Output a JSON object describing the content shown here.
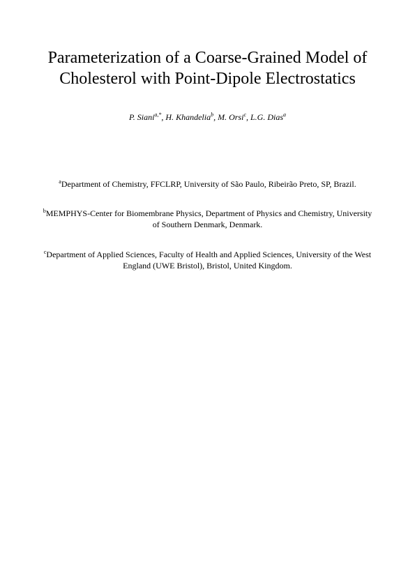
{
  "title": "Parameterization of a Coarse-Grained Model of  Cholesterol with Point-Dipole Electrostatics",
  "authors": {
    "a1_name": "P. Siani",
    "a1_sup": "a,*",
    "a2_name": "H. Khandelia",
    "a2_sup": "b",
    "a3_name": "M. Orsi",
    "a3_sup": "c",
    "a4_name": "L.G. Dias",
    "a4_sup": "a",
    "sep": ", "
  },
  "affiliations": {
    "aff1_sup": "a",
    "aff1_text": "Department of Chemistry, FFCLRP, University of São Paulo, Ribeirão Preto, SP, Brazil.",
    "aff2_sup": "b",
    "aff2_text": "MEMPHYS-Center for Biomembrane Physics, Department of Physics and Chemistry, University of Southern Denmark, Denmark.",
    "aff3_sup": "c",
    "aff3_text": "Department of Applied Sciences, Faculty of Health and Applied Sciences, University of the West England (UWE Bristol), Bristol, United Kingdom."
  },
  "style": {
    "title_fontsize": 24,
    "authors_fontsize": 12,
    "affiliation_fontsize": 12,
    "text_color": "#000000",
    "background_color": "#ffffff"
  }
}
